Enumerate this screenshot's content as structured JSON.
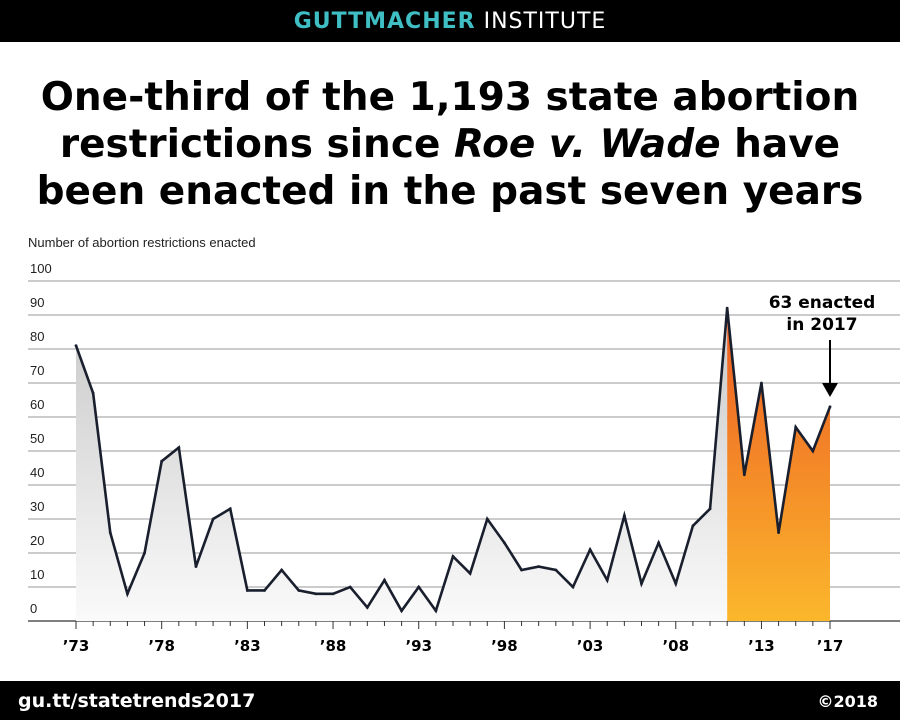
{
  "header": {
    "brand_primary": "GUTTMACHER",
    "brand_secondary": "INSTITUTE",
    "brand_color": "#3fbfc4"
  },
  "headline": {
    "part1": "One-third of the 1,193 state abortion restrictions since ",
    "case_name": "Roe v. Wade",
    "part2": " have been enacted in the past seven years"
  },
  "chart_data": {
    "type": "area",
    "ylabel": "Number of abortion restrictions enacted",
    "ylim": [
      0,
      100
    ],
    "yticks": [
      0,
      10,
      20,
      30,
      40,
      50,
      60,
      70,
      80,
      90,
      100
    ],
    "xtick_labels": [
      {
        "year": 1973,
        "label": "’73"
      },
      {
        "year": 1978,
        "label": "’78"
      },
      {
        "year": 1983,
        "label": "’83"
      },
      {
        "year": 1988,
        "label": "’88"
      },
      {
        "year": 1993,
        "label": "’93"
      },
      {
        "year": 1998,
        "label": "’98"
      },
      {
        "year": 2003,
        "label": "’03"
      },
      {
        "year": 2008,
        "label": "’08"
      },
      {
        "year": 2013,
        "label": "’13"
      },
      {
        "year": 2017,
        "label": "’17"
      }
    ],
    "years": [
      1973,
      1974,
      1975,
      1976,
      1977,
      1978,
      1979,
      1980,
      1981,
      1982,
      1983,
      1984,
      1985,
      1986,
      1987,
      1988,
      1989,
      1990,
      1991,
      1992,
      1993,
      1994,
      1995,
      1996,
      1997,
      1998,
      1999,
      2000,
      2001,
      2002,
      2003,
      2004,
      2005,
      2006,
      2007,
      2008,
      2009,
      2010,
      2011,
      2012,
      2013,
      2014,
      2015,
      2016,
      2017
    ],
    "values": [
      81,
      67,
      26,
      8,
      20,
      47,
      51,
      16,
      30,
      33,
      9,
      9,
      15,
      9,
      8,
      8,
      10,
      4,
      12,
      3,
      10,
      3,
      19,
      14,
      30,
      23,
      15,
      16,
      15,
      10,
      21,
      12,
      31,
      11,
      23,
      11,
      28,
      33,
      92,
      43,
      70,
      26,
      57,
      50,
      63
    ],
    "highlight_from_year": 2011,
    "colors": {
      "line": "#1a1f2e",
      "area_gray": "#d2d2d2",
      "highlight_top": "#ec5a24",
      "highlight_bottom": "#fbb72c"
    },
    "annotation": {
      "line1": "63 enacted",
      "line2": "in 2017",
      "year": 2017
    }
  },
  "footer": {
    "url": "gu.tt/statetrends2017",
    "copyright": "©2018"
  }
}
